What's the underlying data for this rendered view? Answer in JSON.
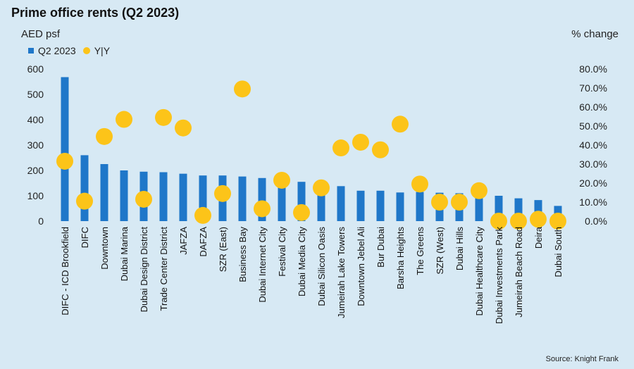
{
  "chart_data": {
    "type": "bar",
    "title": "Prime office rents (Q2 2023)",
    "ylabel": "AED psf",
    "y2label": "% change",
    "source": "Source: Knight Frank",
    "ylim": [
      0,
      600
    ],
    "y2lim": [
      0,
      80
    ],
    "yticks": [
      "0",
      "100",
      "200",
      "300",
      "400",
      "500",
      "600"
    ],
    "y2ticks": [
      "0.0%",
      "10.0%",
      "20.0%",
      "30.0%",
      "40.0%",
      "50.0%",
      "60.0%",
      "70.0%",
      "80.0%"
    ],
    "legend_position": "top-left",
    "grid": false,
    "colors": {
      "bar": "#1f77c9",
      "dot": "#fcc419",
      "background": "#d7e9f4"
    },
    "categories": [
      "DIFC - ICD Brookfield",
      "DIFC",
      "Downtown",
      "Dubai Marina",
      "Dubai Design District",
      "Trade Center District",
      "JAFZA",
      "DAFZA",
      "SZR (East)",
      "Business Bay",
      "Dubai Internet City",
      "Festival City",
      "Dubai Media City",
      "Dubai Silicon Oasis",
      "Jumeirah Lake Towers",
      "Downtown Jebel Ali",
      "Bur Dubai",
      "Barsha Heights",
      "The Greens",
      "SZR (West)",
      "Dubai Hills",
      "Dubai Healthcare City",
      "Dubai Investments Park",
      "Jumeirah Beach Road",
      "Deira",
      "Dubai South"
    ],
    "series": [
      {
        "name": "Q2 2023",
        "type": "bar",
        "axis": "left",
        "values": [
          568,
          260,
          225,
          200,
          195,
          193,
          187,
          180,
          180,
          176,
          170,
          165,
          155,
          140,
          138,
          120,
          120,
          113,
          115,
          112,
          110,
          105,
          100,
          90,
          83,
          60
        ]
      },
      {
        "name": "Y|Y",
        "type": "scatter",
        "axis": "right",
        "values": [
          31.5,
          10.5,
          44.5,
          53.5,
          11.5,
          54.5,
          49.0,
          3.0,
          14.5,
          69.5,
          6.5,
          21.5,
          4.5,
          17.5,
          38.5,
          41.5,
          37.5,
          51.0,
          19.5,
          10.0,
          10.0,
          16.0,
          0.0,
          0.0,
          1.0,
          0.0
        ]
      }
    ]
  }
}
